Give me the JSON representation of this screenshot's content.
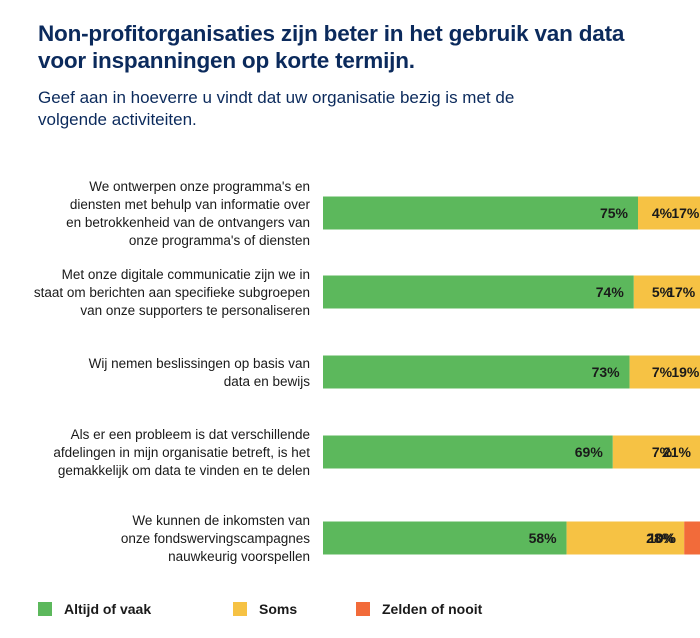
{
  "header": {
    "title": "Non-profitorganisaties zijn beter in het gebruik van data voor inspanningen op korte termijn.",
    "subtitle": "Geef aan in hoeverre u vindt dat uw organisatie bezig is met de volgende activiteiten."
  },
  "chart_data": {
    "type": "bar",
    "orientation": "horizontal",
    "stacked": true,
    "categories": [
      [
        "We ontwerpen onze programma's en",
        "diensten met behulp van informatie over",
        "en betrokkenheid van de ontvangers van",
        "onze programma's of diensten"
      ],
      [
        "Met onze digitale communicatie zijn we in",
        "staat om berichten aan specifieke subgroepen",
        "van onze supporters te personaliseren"
      ],
      [
        "Wij nemen beslissingen op basis van",
        "data en bewijs"
      ],
      [
        "Als er een probleem is dat verschillende",
        "afdelingen in mijn organisatie betreft, is het",
        "gemakkelijk om data te vinden en te delen"
      ],
      [
        "We kunnen de inkomsten van",
        "onze fondswervingscampagnes",
        "nauwkeurig voorspellen"
      ]
    ],
    "series": [
      {
        "name": "Altijd of vaak",
        "color": "#5cb85c",
        "values": [
          75,
          74,
          73,
          69,
          58
        ],
        "labels": [
          "75%",
          "74%",
          "73%",
          "69%",
          "58%"
        ]
      },
      {
        "name": "Soms",
        "color": "#f6c244",
        "values": [
          17,
          17,
          19,
          21,
          28
        ],
        "labels": [
          "17%",
          "17%",
          "19%",
          "21%",
          "28%"
        ]
      },
      {
        "name": "Zelden of nooit",
        "color": "#f26b3a",
        "values": [
          4,
          5,
          7,
          7,
          10
        ],
        "labels": [
          "4%",
          "5%",
          "7%",
          "7%",
          "10%"
        ]
      }
    ],
    "unit": "%",
    "xlim": [
      0,
      100
    ],
    "grid": false,
    "legend_position": "bottom"
  }
}
